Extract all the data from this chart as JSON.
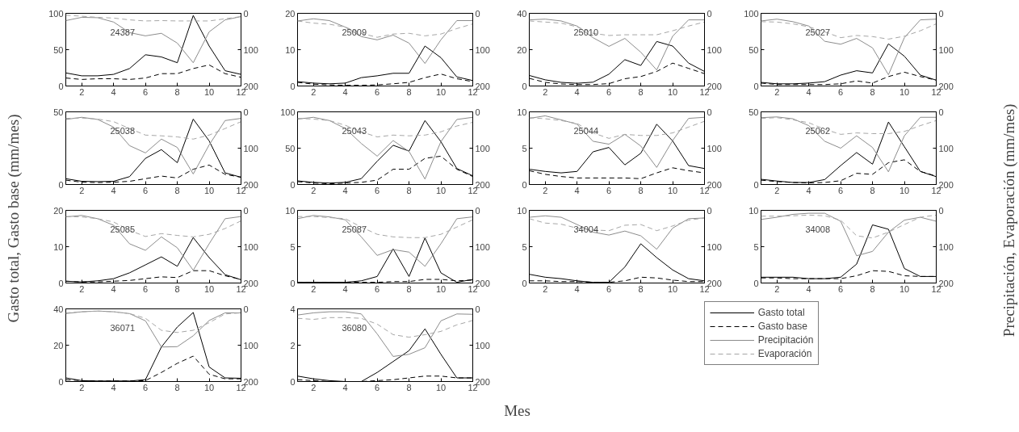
{
  "chart_data": [
    {
      "type": "line",
      "annotations": [
        "24387"
      ],
      "x": [
        1,
        2,
        3,
        4,
        5,
        6,
        7,
        8,
        9,
        10,
        11,
        12
      ],
      "xlim": [
        1,
        12
      ],
      "xticks": [
        2,
        4,
        6,
        8,
        10,
        12
      ],
      "ylim": [
        0,
        100
      ],
      "yticks": [
        0,
        50,
        100
      ],
      "y2lim": [
        200,
        0
      ],
      "y2ticks": [
        0,
        100,
        200
      ],
      "grid": false,
      "series": [
        {
          "color": "#000000",
          "line_style": "solid",
          "values": [
            18,
            14,
            14,
            16,
            24,
            43,
            40,
            32,
            97,
            55,
            21,
            16
          ]
        },
        {
          "color": "#000000",
          "line_style": "dashed",
          "values": [
            11,
            9,
            10,
            10,
            9,
            11,
            17,
            17,
            24,
            29,
            17,
            12
          ]
        },
        {
          "color": "#8c8c8c",
          "line_style": "solid",
          "axis": "y2",
          "values": [
            20,
            11,
            12,
            24,
            53,
            62,
            55,
            82,
            136,
            51,
            18,
            9
          ]
        },
        {
          "color": "#a6a6a6",
          "line_style": "dashed",
          "axis": "y2",
          "values": [
            5,
            8,
            11,
            13,
            18,
            21,
            20,
            21,
            21,
            21,
            15,
            9
          ]
        }
      ]
    },
    {
      "type": "line",
      "annotations": [
        "25009"
      ],
      "x": [
        1,
        2,
        3,
        4,
        5,
        6,
        7,
        8,
        9,
        10,
        11,
        12
      ],
      "xlim": [
        1,
        12
      ],
      "xticks": [
        2,
        4,
        6,
        8,
        10,
        12
      ],
      "ylim": [
        0,
        20
      ],
      "yticks": [
        0,
        10,
        20
      ],
      "y2lim": [
        200,
        0
      ],
      "y2ticks": [
        0,
        100,
        200
      ],
      "grid": false,
      "series": [
        {
          "color": "#000000",
          "line_style": "solid",
          "values": [
            1.2,
            0.8,
            0.6,
            0.8,
            2.3,
            2.8,
            3.5,
            3.5,
            11,
            7.8,
            2.5,
            1.5
          ]
        },
        {
          "color": "#000000",
          "line_style": "dashed",
          "values": [
            1,
            0.5,
            0.3,
            0.2,
            0.2,
            0.3,
            0.6,
            1,
            2.3,
            3.3,
            2,
            1.2
          ]
        },
        {
          "color": "#8c8c8c",
          "line_style": "solid",
          "axis": "y2",
          "values": [
            21,
            15,
            20,
            38,
            64,
            73,
            60,
            82,
            138,
            73,
            20,
            20
          ]
        },
        {
          "color": "#a6a6a6",
          "line_style": "dashed",
          "axis": "y2",
          "values": [
            21,
            27,
            30,
            38,
            55,
            66,
            57,
            55,
            62,
            57,
            42,
            29
          ]
        }
      ]
    },
    {
      "type": "line",
      "annotations": [
        "25010"
      ],
      "x": [
        1,
        2,
        3,
        4,
        5,
        6,
        7,
        8,
        9,
        10,
        11,
        12
      ],
      "xlim": [
        1,
        12
      ],
      "xticks": [
        2,
        4,
        6,
        8,
        10,
        12
      ],
      "ylim": [
        0,
        40
      ],
      "yticks": [
        0,
        20,
        40
      ],
      "y2lim": [
        200,
        0
      ],
      "y2ticks": [
        0,
        100,
        200
      ],
      "grid": false,
      "series": [
        {
          "color": "#000000",
          "line_style": "solid",
          "values": [
            5.8,
            3.4,
            2,
            1.5,
            2.1,
            6.5,
            14.5,
            11.3,
            24.5,
            22,
            12.6,
            8
          ]
        },
        {
          "color": "#000000",
          "line_style": "dashed",
          "values": [
            4.2,
            2,
            1.1,
            0.8,
            0.8,
            1.3,
            4,
            5.2,
            8,
            12.6,
            9.7,
            6.8
          ]
        },
        {
          "color": "#8c8c8c",
          "line_style": "solid",
          "axis": "y2",
          "values": [
            18,
            16,
            21,
            35,
            67,
            91,
            69,
            107,
            156,
            63,
            18,
            18
          ]
        },
        {
          "color": "#a6a6a6",
          "line_style": "dashed",
          "axis": "y2",
          "values": [
            21,
            24,
            27,
            37,
            55,
            61,
            59,
            59,
            59,
            48,
            35,
            24
          ]
        }
      ]
    },
    {
      "type": "line",
      "annotations": [
        "25027"
      ],
      "x": [
        1,
        2,
        3,
        4,
        5,
        6,
        7,
        8,
        9,
        10,
        11,
        12
      ],
      "xlim": [
        1,
        12
      ],
      "xticks": [
        2,
        4,
        6,
        8,
        10,
        12
      ],
      "ylim": [
        0,
        100
      ],
      "yticks": [
        0,
        50,
        100
      ],
      "y2lim": [
        200,
        0
      ],
      "y2ticks": [
        0,
        100,
        200
      ],
      "grid": false,
      "series": [
        {
          "color": "#000000",
          "line_style": "solid",
          "values": [
            5,
            3,
            3,
            4,
            6,
            15,
            21,
            18,
            58,
            41,
            15,
            8
          ]
        },
        {
          "color": "#000000",
          "line_style": "dashed",
          "values": [
            4,
            2,
            2,
            2,
            2,
            3,
            7,
            4,
            13,
            19,
            13,
            8
          ]
        },
        {
          "color": "#8c8c8c",
          "line_style": "solid",
          "axis": "y2",
          "values": [
            21,
            16,
            23,
            35,
            77,
            85,
            69,
            95,
            169,
            67,
            18,
            16
          ]
        },
        {
          "color": "#a6a6a6",
          "line_style": "dashed",
          "axis": "y2",
          "values": [
            23,
            24,
            29,
            37,
            51,
            67,
            61,
            64,
            71,
            63,
            48,
            29
          ]
        }
      ]
    },
    {
      "type": "line",
      "annotations": [
        "25038"
      ],
      "ylabel": "Gasto total, Gasto base (mm/mes)",
      "x": [
        1,
        2,
        3,
        4,
        5,
        6,
        7,
        8,
        9,
        10,
        11,
        12
      ],
      "xlim": [
        1,
        12
      ],
      "xticks": [
        2,
        4,
        6,
        8,
        10,
        12
      ],
      "ylim": [
        0,
        50
      ],
      "yticks": [
        0,
        50
      ],
      "y2lim": [
        200,
        0
      ],
      "y2ticks": [
        0,
        100,
        200
      ],
      "grid": false,
      "series": [
        {
          "color": "#000000",
          "line_style": "solid",
          "values": [
            4,
            2.2,
            2,
            2.2,
            5.4,
            18,
            24,
            15,
            45,
            30,
            8,
            5
          ]
        },
        {
          "color": "#000000",
          "line_style": "dashed",
          "values": [
            3,
            1.6,
            1.3,
            1.6,
            2.2,
            4,
            5.8,
            4.5,
            10.5,
            13.4,
            7,
            5
          ]
        },
        {
          "color": "#8c8c8c",
          "line_style": "solid",
          "axis": "y2",
          "values": [
            21,
            15,
            21,
            42,
            93,
            113,
            75,
            98,
            171,
            91,
            24,
            18
          ]
        },
        {
          "color": "#a6a6a6",
          "line_style": "dashed",
          "axis": "y2",
          "values": [
            18,
            17,
            20,
            27,
            46,
            64,
            66,
            69,
            75,
            64,
            46,
            27
          ]
        }
      ]
    },
    {
      "type": "line",
      "annotations": [
        "25043"
      ],
      "x": [
        1,
        2,
        3,
        4,
        5,
        6,
        7,
        8,
        9,
        10,
        11,
        12
      ],
      "xlim": [
        1,
        12
      ],
      "xticks": [
        2,
        4,
        6,
        8,
        10,
        12
      ],
      "ylim": [
        0,
        100
      ],
      "yticks": [
        0,
        50,
        100
      ],
      "y2lim": [
        200,
        0
      ],
      "y2ticks": [
        0,
        100,
        200
      ],
      "grid": false,
      "series": [
        {
          "color": "#000000",
          "line_style": "solid",
          "values": [
            5,
            3,
            2,
            3,
            8,
            32,
            54,
            46,
            88,
            59,
            22,
            12
          ]
        },
        {
          "color": "#000000",
          "line_style": "dashed",
          "values": [
            4,
            2,
            1,
            2,
            3,
            6,
            21,
            21,
            36,
            39,
            21,
            11
          ]
        },
        {
          "color": "#8c8c8c",
          "line_style": "solid",
          "axis": "y2",
          "values": [
            20,
            15,
            24,
            46,
            87,
            122,
            79,
            109,
            185,
            82,
            21,
            15
          ]
        },
        {
          "color": "#a6a6a6",
          "line_style": "dashed",
          "axis": "y2",
          "values": [
            18,
            20,
            24,
            37,
            55,
            69,
            64,
            66,
            64,
            55,
            39,
            29
          ]
        }
      ]
    },
    {
      "type": "line",
      "annotations": [
        "25044"
      ],
      "x": [
        1,
        2,
        3,
        4,
        5,
        6,
        7,
        8,
        9,
        10,
        11,
        12
      ],
      "xlim": [
        1,
        12
      ],
      "xticks": [
        2,
        4,
        6,
        8,
        10,
        12
      ],
      "ylim": [
        0,
        10
      ],
      "yticks": [
        0,
        5,
        10
      ],
      "y2lim": [
        200,
        0
      ],
      "y2ticks": [
        0,
        100,
        200
      ],
      "grid": false,
      "series": [
        {
          "color": "#000000",
          "line_style": "solid",
          "values": [
            2.1,
            1.8,
            1.6,
            1.8,
            4.5,
            5.1,
            2.7,
            4.3,
            8.3,
            6,
            2.6,
            2.2
          ]
        },
        {
          "color": "#000000",
          "line_style": "dashed",
          "values": [
            1.9,
            1.4,
            1.1,
            0.9,
            0.9,
            0.9,
            0.9,
            0.8,
            1.6,
            2.3,
            1.9,
            1.6
          ]
        },
        {
          "color": "#8c8c8c",
          "line_style": "solid",
          "axis": "y2",
          "values": [
            18,
            11,
            22,
            34,
            81,
            89,
            62,
            94,
            153,
            79,
            18,
            15
          ]
        },
        {
          "color": "#a6a6a6",
          "line_style": "dashed",
          "axis": "y2",
          "values": [
            16,
            19,
            24,
            32,
            58,
            73,
            62,
            65,
            65,
            58,
            42,
            26
          ]
        }
      ]
    },
    {
      "type": "line",
      "annotations": [
        "25062"
      ],
      "y2label": "Precipitación, Evaporación  (mm/mes)",
      "x": [
        1,
        2,
        3,
        4,
        5,
        6,
        7,
        8,
        9,
        10,
        11,
        12
      ],
      "xlim": [
        1,
        12
      ],
      "xticks": [
        2,
        4,
        6,
        8,
        10,
        12
      ],
      "ylim": [
        0,
        50
      ],
      "yticks": [
        0,
        50
      ],
      "y2lim": [
        200,
        0
      ],
      "y2ticks": [
        0,
        100,
        200
      ],
      "grid": false,
      "series": [
        {
          "color": "#000000",
          "line_style": "solid",
          "values": [
            3.6,
            2.4,
            1.4,
            1.4,
            3.4,
            13,
            22,
            14,
            43,
            26,
            9,
            5.4
          ]
        },
        {
          "color": "#000000",
          "line_style": "dashed",
          "values": [
            3,
            2,
            1.4,
            1,
            1.4,
            2.6,
            7.7,
            7,
            15,
            17,
            9,
            5.8
          ]
        },
        {
          "color": "#8c8c8c",
          "line_style": "solid",
          "axis": "y2",
          "values": [
            16,
            14,
            19,
            38,
            81,
            100,
            66,
            98,
            165,
            66,
            15,
            15
          ]
        },
        {
          "color": "#a6a6a6",
          "line_style": "dashed",
          "axis": "y2",
          "values": [
            18,
            16,
            22,
            30,
            48,
            62,
            58,
            60,
            60,
            54,
            38,
            24
          ]
        }
      ]
    },
    {
      "type": "line",
      "annotations": [
        "25085"
      ],
      "x": [
        1,
        2,
        3,
        4,
        5,
        6,
        7,
        8,
        9,
        10,
        11,
        12
      ],
      "xlim": [
        1,
        12
      ],
      "xticks": [
        2,
        4,
        6,
        8,
        10,
        12
      ],
      "ylim": [
        0,
        20
      ],
      "yticks": [
        0,
        10,
        20
      ],
      "y2lim": [
        200,
        0
      ],
      "y2ticks": [
        0,
        100,
        200
      ],
      "grid": false,
      "series": [
        {
          "color": "#000000",
          "line_style": "solid",
          "values": [
            0.5,
            0.3,
            0.6,
            1.2,
            2.8,
            5,
            7.2,
            4.6,
            12.5,
            7,
            2.3,
            0.9
          ]
        },
        {
          "color": "#000000",
          "line_style": "dashed",
          "values": [
            0.5,
            0.3,
            0.3,
            0.5,
            0.7,
            1.2,
            1.7,
            1.5,
            3.4,
            3.4,
            2,
            1
          ]
        },
        {
          "color": "#8c8c8c",
          "line_style": "solid",
          "axis": "y2",
          "values": [
            18,
            14,
            23,
            41,
            92,
            110,
            73,
            103,
            165,
            92,
            23,
            17
          ]
        },
        {
          "color": "#a6a6a6",
          "line_style": "dashed",
          "axis": "y2",
          "values": [
            17,
            18,
            23,
            32,
            55,
            72,
            64,
            69,
            73,
            66,
            50,
            29
          ]
        }
      ]
    },
    {
      "type": "line",
      "annotations": [
        "25087"
      ],
      "x": [
        1,
        2,
        3,
        4,
        5,
        6,
        7,
        8,
        9,
        10,
        11,
        12
      ],
      "xlim": [
        1,
        12
      ],
      "xticks": [
        2,
        4,
        6,
        8,
        10,
        12
      ],
      "ylim": [
        0,
        10
      ],
      "yticks": [
        0,
        5,
        10
      ],
      "y2lim": [
        200,
        0
      ],
      "y2ticks": [
        0,
        100,
        200
      ],
      "grid": false,
      "series": [
        {
          "color": "#000000",
          "line_style": "solid",
          "values": [
            0.1,
            0.1,
            0.1,
            0.1,
            0.3,
            0.9,
            4.7,
            0.9,
            6.2,
            1.4,
            0.1,
            0.5
          ]
        },
        {
          "color": "#000000",
          "line_style": "dashed",
          "values": [
            0.1,
            0.1,
            0.1,
            0.1,
            0.1,
            0.1,
            0.2,
            0.2,
            0.5,
            0.5,
            0.3,
            0.4
          ]
        },
        {
          "color": "#8c8c8c",
          "line_style": "solid",
          "axis": "y2",
          "values": [
            23,
            14,
            18,
            26,
            73,
            124,
            108,
            115,
            154,
            92,
            23,
            18
          ]
        },
        {
          "color": "#a6a6a6",
          "line_style": "dashed",
          "axis": "y2",
          "values": [
            17,
            17,
            20,
            23,
            46,
            66,
            73,
            75,
            75,
            66,
            46,
            26
          ]
        }
      ]
    },
    {
      "type": "line",
      "annotations": [
        "34004"
      ],
      "x": [
        1,
        2,
        3,
        4,
        5,
        6,
        7,
        8,
        9,
        10,
        11,
        12
      ],
      "xlim": [
        1,
        12
      ],
      "xticks": [
        2,
        4,
        6,
        8,
        10,
        12
      ],
      "ylim": [
        0,
        10
      ],
      "yticks": [
        0,
        5,
        10
      ],
      "y2lim": [
        200,
        0
      ],
      "y2ticks": [
        0,
        100,
        200
      ],
      "grid": false,
      "series": [
        {
          "color": "#000000",
          "line_style": "solid",
          "values": [
            1.2,
            0.8,
            0.6,
            0.3,
            0.1,
            0.1,
            2.2,
            5.4,
            3.5,
            1.8,
            0.6,
            0.3
          ]
        },
        {
          "color": "#000000",
          "line_style": "dashed",
          "values": [
            0.3,
            0.3,
            0.2,
            0.2,
            0.1,
            0.1,
            0.3,
            0.8,
            0.7,
            0.4,
            0.2,
            0.2
          ]
        },
        {
          "color": "#8c8c8c",
          "line_style": "solid",
          "axis": "y2",
          "values": [
            19,
            15,
            19,
            39,
            60,
            68,
            57,
            70,
            107,
            49,
            23,
            21
          ]
        },
        {
          "color": "#a6a6a6",
          "line_style": "dashed",
          "axis": "y2",
          "values": [
            23,
            35,
            38,
            49,
            54,
            56,
            41,
            39,
            56,
            43,
            27,
            21
          ]
        }
      ]
    },
    {
      "type": "line",
      "annotations": [
        "34008"
      ],
      "x": [
        1,
        2,
        3,
        4,
        5,
        6,
        7,
        8,
        9,
        10,
        11,
        12
      ],
      "xlim": [
        1,
        12
      ],
      "xticks": [
        2,
        4,
        6,
        8,
        10,
        12
      ],
      "ylim": [
        0,
        10
      ],
      "yticks": [
        0,
        5,
        10
      ],
      "y2lim": [
        200,
        0
      ],
      "y2ticks": [
        0,
        100,
        200
      ],
      "grid": false,
      "series": [
        {
          "color": "#000000",
          "line_style": "solid",
          "values": [
            0.8,
            0.8,
            0.8,
            0.6,
            0.6,
            0.8,
            2.6,
            8,
            7.4,
            2,
            0.9,
            0.9
          ]
        },
        {
          "color": "#000000",
          "line_style": "dashed",
          "values": [
            0.7,
            0.7,
            0.6,
            0.6,
            0.6,
            0.6,
            1,
            1.7,
            1.6,
            1,
            0.9,
            0.9
          ]
        },
        {
          "color": "#8c8c8c",
          "line_style": "solid",
          "axis": "y2",
          "values": [
            25,
            19,
            11,
            8,
            8,
            30,
            125,
            113,
            60,
            27,
            19,
            30
          ]
        },
        {
          "color": "#a6a6a6",
          "line_style": "dashed",
          "axis": "y2",
          "values": [
            16,
            16,
            15,
            13,
            15,
            27,
            70,
            76,
            60,
            39,
            19,
            13
          ]
        }
      ]
    },
    {
      "type": "line",
      "annotations": [
        "36071"
      ],
      "x": [
        1,
        2,
        3,
        4,
        5,
        6,
        7,
        8,
        9,
        10,
        11,
        12
      ],
      "xlim": [
        1,
        12
      ],
      "xticks": [
        2,
        4,
        6,
        8,
        10,
        12
      ],
      "ylim": [
        0,
        40
      ],
      "yticks": [
        0,
        20,
        40
      ],
      "y2lim": [
        200,
        0
      ],
      "y2ticks": [
        0,
        100,
        200
      ],
      "grid": false,
      "series": [
        {
          "color": "#000000",
          "line_style": "solid",
          "values": [
            2,
            0.5,
            0.3,
            0.3,
            0.3,
            1,
            19,
            30,
            38,
            8,
            2,
            1.8
          ]
        },
        {
          "color": "#000000",
          "line_style": "dashed",
          "values": [
            1,
            0.5,
            0.3,
            0.3,
            0.3,
            0.5,
            5,
            10,
            14,
            4,
            1.5,
            1.5
          ]
        },
        {
          "color": "#8c8c8c",
          "line_style": "solid",
          "axis": "y2",
          "values": [
            13,
            8,
            6,
            8,
            13,
            33,
            105,
            104,
            74,
            32,
            11,
            11
          ]
        },
        {
          "color": "#a6a6a6",
          "line_style": "dashed",
          "axis": "y2",
          "values": [
            11,
            8,
            6,
            8,
            13,
            26,
            59,
            65,
            59,
            38,
            14,
            11
          ]
        }
      ]
    },
    {
      "type": "line",
      "annotations": [
        "36080"
      ],
      "xlabel": "Mes",
      "x": [
        1,
        2,
        3,
        4,
        5,
        6,
        7,
        8,
        9,
        10,
        11,
        12
      ],
      "xlim": [
        1,
        12
      ],
      "xticks": [
        2,
        4,
        6,
        8,
        10,
        12
      ],
      "ylim": [
        0,
        4
      ],
      "yticks": [
        0,
        2,
        4
      ],
      "y2lim": [
        200,
        0
      ],
      "y2ticks": [
        0,
        100,
        200
      ],
      "grid": false,
      "legend": "right",
      "series": [
        {
          "name": "Gasto total",
          "color": "#000000",
          "line_style": "solid",
          "values": [
            0.3,
            0.15,
            0.05,
            0,
            0,
            0.5,
            1.1,
            1.7,
            2.9,
            1.5,
            0.2,
            0.2
          ]
        },
        {
          "name": "Gasto base",
          "color": "#000000",
          "line_style": "dashed",
          "values": [
            0.1,
            0.05,
            0,
            0,
            0,
            0.05,
            0.1,
            0.2,
            0.3,
            0.3,
            0.2,
            0.2
          ]
        },
        {
          "name": "Precipitación",
          "color": "#8c8c8c",
          "line_style": "solid",
          "axis": "y2",
          "values": [
            17,
            11,
            8,
            8,
            14,
            69,
            131,
            125,
            107,
            33,
            14,
            15
          ]
        },
        {
          "name": "Evaporación",
          "color": "#a6a6a6",
          "line_style": "dashed",
          "axis": "y2",
          "values": [
            26,
            29,
            24,
            24,
            26,
            42,
            71,
            78,
            71,
            62,
            44,
            32
          ]
        }
      ]
    }
  ]
}
